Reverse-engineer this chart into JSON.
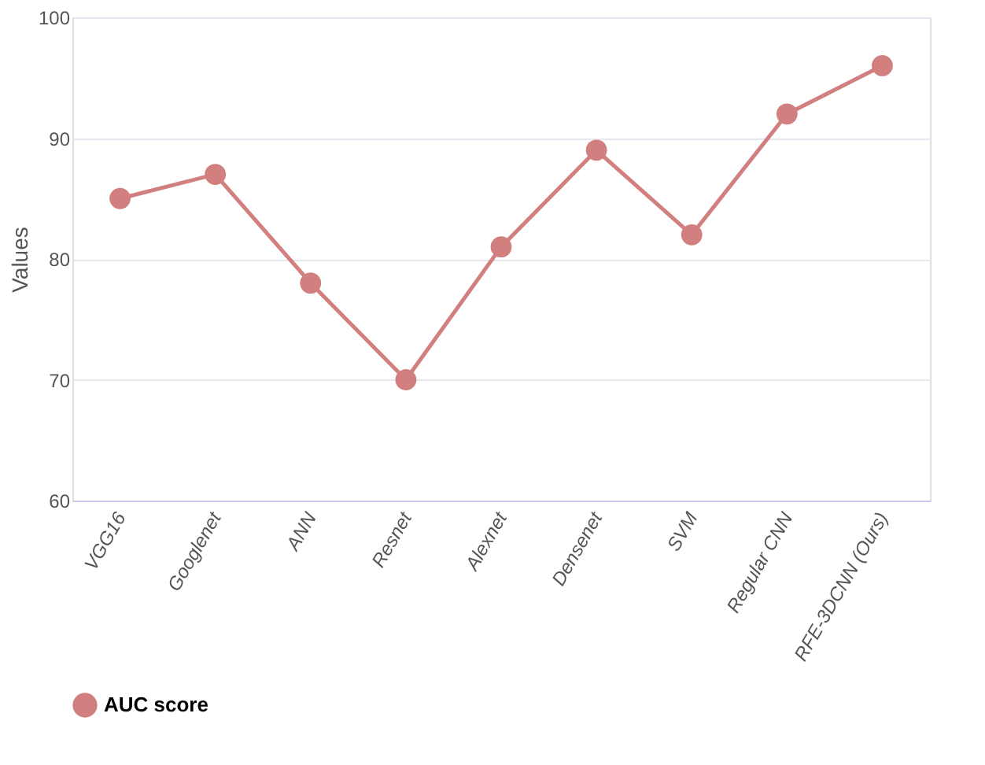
{
  "chart_data": {
    "type": "line",
    "ylabel": "Values",
    "categories": [
      "VGG16",
      "Googlenet",
      "ANN",
      "Resnet",
      "Alexnet",
      "Densenet",
      "SVM",
      "Regular CNN",
      "RFE-3DCNN (Ours)"
    ],
    "series": [
      {
        "name": "AUC score",
        "color": "#d27f7f",
        "values": [
          85,
          87,
          78,
          70,
          81,
          89,
          82,
          92,
          96
        ]
      }
    ],
    "ylim": [
      60,
      100
    ],
    "yticks": [
      60,
      70,
      80,
      90,
      100
    ],
    "grid": "y",
    "legend": "bottom",
    "marker": "circle",
    "line_style": "solid"
  }
}
